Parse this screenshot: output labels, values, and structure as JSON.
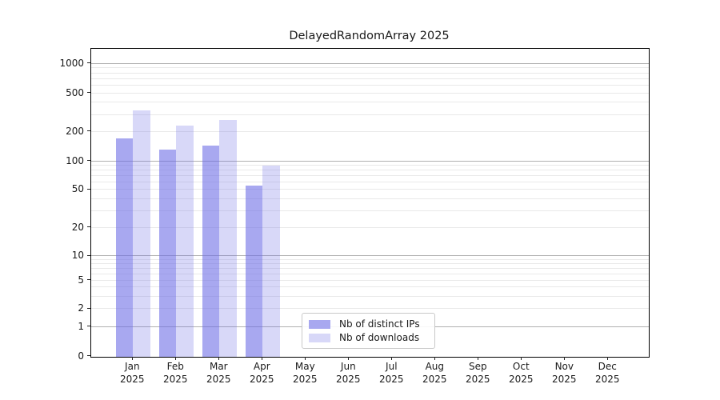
{
  "title": "DelayedRandomArray 2025",
  "chart_data": {
    "type": "bar",
    "title": "DelayedRandomArray 2025",
    "xlabel": "",
    "ylabel": "",
    "year": "2025",
    "categories": [
      "Jan",
      "Feb",
      "Mar",
      "Apr",
      "May",
      "Jun",
      "Jul",
      "Aug",
      "Sep",
      "Oct",
      "Nov",
      "Dec"
    ],
    "series": [
      {
        "name": "Nb of distinct IPs",
        "color": "#6e6ee6",
        "alpha": 0.6,
        "swatch": "#a8a8f0",
        "values": [
          171,
          131,
          145,
          55,
          null,
          null,
          null,
          null,
          null,
          null,
          null,
          null
        ]
      },
      {
        "name": "Nb of downloads",
        "color": "#6e6ee6",
        "alpha": 0.27,
        "swatch": "#d8d8f8",
        "values": [
          334,
          232,
          267,
          90,
          null,
          null,
          null,
          null,
          null,
          null,
          null,
          null
        ]
      }
    ],
    "yscale": "symlog-like",
    "yticks": [
      {
        "v": 0,
        "label": "0",
        "pos": 0.0
      },
      {
        "v": 1,
        "label": "1",
        "pos": 0.0957
      },
      {
        "v": 2,
        "label": "2",
        "pos": 0.1542
      },
      {
        "v": 5,
        "label": "5",
        "pos": 0.2465
      },
      {
        "v": 10,
        "label": "10",
        "pos": 0.3258
      },
      {
        "v": 20,
        "label": "20",
        "pos": 0.4181
      },
      {
        "v": 50,
        "label": "50",
        "pos": 0.5416
      },
      {
        "v": 100,
        "label": "100",
        "pos": 0.6339
      },
      {
        "v": 200,
        "label": "200",
        "pos": 0.7301
      },
      {
        "v": 500,
        "label": "500",
        "pos": 0.8549
      },
      {
        "v": 1000,
        "label": "1000",
        "pos": 0.9511
      }
    ],
    "minor_gridline_values": [
      2,
      3,
      4,
      5,
      6,
      7,
      8,
      9,
      20,
      30,
      40,
      50,
      60,
      70,
      80,
      90,
      200,
      300,
      400,
      500,
      600,
      700,
      800,
      900
    ],
    "major_gridline_values": [
      1,
      10,
      100,
      1000
    ],
    "grid": "both",
    "legend": {
      "items": [
        "Nb of distinct IPs",
        "Nb of downloads"
      ],
      "position": "lower center-left inside plot"
    }
  }
}
